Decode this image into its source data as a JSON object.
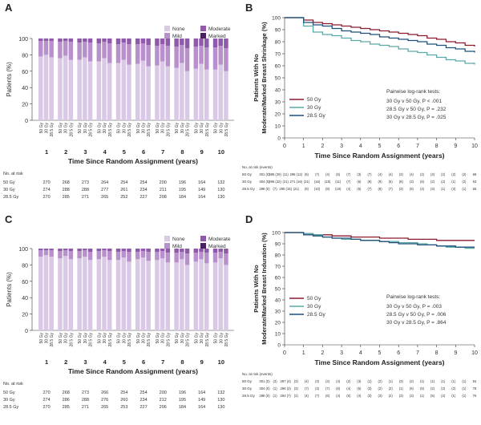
{
  "panels": [
    {
      "letter": "A",
      "type": "stacked_bar",
      "ylabel": "Patients (%)",
      "xlabel": "Time Since Random Assignment (years)",
      "yticks": [
        "0",
        "20",
        "40",
        "60",
        "80",
        "100"
      ],
      "legend": [
        "None",
        "Moderate",
        "Mild",
        "Marked"
      ],
      "arm_labels": [
        "50 Gy",
        "30 Gy",
        "28.5 Gy"
      ],
      "years": [
        "1",
        "2",
        "3",
        "4",
        "5",
        "6",
        "7",
        "8",
        "9",
        "10"
      ],
      "at_risk_title": "No. at risk",
      "at_risk": [
        {
          "arm": "50 Gy",
          "values": [
            "270",
            "268",
            "273",
            "264",
            "254",
            "254",
            "200",
            "196",
            "164",
            "132"
          ]
        },
        {
          "arm": "30 Gy",
          "values": [
            "274",
            "288",
            "288",
            "277",
            "261",
            "234",
            "211",
            "195",
            "149",
            "130"
          ]
        },
        {
          "arm": "28.5 Gy",
          "values": [
            "270",
            "285",
            "271",
            "265",
            "252",
            "227",
            "208",
            "184",
            "164",
            "130"
          ]
        }
      ]
    },
    {
      "letter": "B",
      "type": "km",
      "ylabel_line1": "Patients With No",
      "ylabel_line2": "Moderate/Marked Breast Shrinkage (%)",
      "xlabel": "Time Since Random Assignment (years)",
      "yticks": [
        "0",
        "10",
        "20",
        "30",
        "40",
        "50",
        "60",
        "70",
        "80",
        "90",
        "100"
      ],
      "xticks": [
        "0",
        "1",
        "2",
        "3",
        "4",
        "5",
        "6",
        "7",
        "8",
        "9",
        "10"
      ],
      "legend": [
        "50 Gy",
        "30 Gy",
        "28.5 Gy"
      ],
      "logrank_title": "Pairwise log-rank tests:",
      "logrank": [
        "30 Gy v 50 Gy, P < .001",
        "28.5 Gy v 50 Gy, P = .232",
        "30 Gy v 28.5 Gy, P = .025"
      ],
      "at_risk_title": "No. at risk (events)",
      "at_risk": [
        {
          "arm": "50 Gy",
          "values": [
            "301 (0)",
            "285 (29)",
            "(11)",
            "298 (12)",
            "(5)",
            "(7)",
            "(4)",
            "(5)",
            "(7)",
            "(3)",
            "(7)",
            "(4)",
            "(4)",
            "(3)",
            "(4)",
            "(2)",
            "(3)",
            "(2)",
            "(2)",
            "(2)",
            "68"
          ]
        },
        {
          "arm": "30 Gy",
          "values": [
            "304 (0)",
            "295 (22)",
            "(21)",
            "271 (16)",
            "(21)",
            "(16)",
            "(15)",
            "(11)",
            "(7)",
            "(6)",
            "(8)",
            "(9)",
            "(5)",
            "(8)",
            "(3)",
            "(6)",
            "(2)",
            "(2)",
            "(1)",
            "(2)",
            "63"
          ]
        },
        {
          "arm": "28.5 Gy",
          "values": [
            "298 (0)",
            "(7)",
            "290 (15)",
            "(21)",
            "(8)",
            "(10)",
            "(8)",
            "(10)",
            "(4)",
            "(6)",
            "(7)",
            "(8)",
            "(7)",
            "(3)",
            "(5)",
            "(4)",
            "(3)",
            "(1)",
            "(3)",
            "(1)",
            "65"
          ]
        }
      ]
    },
    {
      "letter": "C",
      "type": "stacked_bar",
      "ylabel": "Patients (%)",
      "xlabel": "Time Since Random Assignment (years)",
      "yticks": [
        "0",
        "20",
        "40",
        "60",
        "80",
        "100"
      ],
      "legend": [
        "None",
        "Moderate",
        "Mild",
        "Marked"
      ],
      "arm_labels": [
        "50 Gy",
        "30 Gy",
        "28.5 Gy"
      ],
      "years": [
        "1",
        "2",
        "3",
        "4",
        "5",
        "6",
        "7",
        "8",
        "9",
        "10"
      ],
      "at_risk_title": "No. at risk",
      "at_risk": [
        {
          "arm": "50 Gy",
          "values": [
            "270",
            "268",
            "273",
            "266",
            "254",
            "254",
            "200",
            "196",
            "164",
            "132"
          ]
        },
        {
          "arm": "30 Gy",
          "values": [
            "274",
            "286",
            "288",
            "276",
            "260",
            "234",
            "212",
            "195",
            "149",
            "130"
          ]
        },
        {
          "arm": "28.5 Gy",
          "values": [
            "270",
            "285",
            "271",
            "265",
            "253",
            "227",
            "206",
            "184",
            "164",
            "130"
          ]
        }
      ]
    },
    {
      "letter": "D",
      "type": "km",
      "ylabel_line1": "Patients With No",
      "ylabel_line2": "Moderate/Marked Breast Induration (%)",
      "xlabel": "Time Since Random Assignment (years)",
      "yticks": [
        "0",
        "10",
        "20",
        "30",
        "40",
        "50",
        "60",
        "70",
        "80",
        "90",
        "100"
      ],
      "xticks": [
        "0",
        "1",
        "2",
        "3",
        "4",
        "5",
        "6",
        "7",
        "8",
        "9",
        "10"
      ],
      "legend": [
        "50 Gy",
        "30 Gy",
        "28.5 Gy"
      ],
      "logrank_title": "Pairwise log-rank tests:",
      "logrank": [
        "30 Gy v 50 Gy, P = .003",
        "28.5 Gy v 50 Gy, P = .006",
        "30 Gy v 28.5 Gy, P = .864"
      ],
      "at_risk_title": "No. at risk (events)",
      "at_risk": [
        {
          "arm": "50 Gy",
          "values": [
            "301 (0)",
            "(3)",
            "297 (4)",
            "(3)",
            "(4)",
            "(3)",
            "(2)",
            "(4)",
            "(2)",
            "(3)",
            "(1)",
            "(2)",
            "(1)",
            "(3)",
            "(2)",
            "(1)",
            "(1)",
            "(1)",
            "(1)",
            "(1)",
            "84"
          ]
        },
        {
          "arm": "30 Gy",
          "values": [
            "304 (0)",
            "(1)",
            "296 (2)",
            "(3)",
            "(7)",
            "(3)",
            "(7)",
            "(6)",
            "(4)",
            "(5)",
            "(3)",
            "(2)",
            "(2)",
            "(1)",
            "(6)",
            "(5)",
            "(2)",
            "(2)",
            "(2)",
            "(1)",
            "78"
          ]
        },
        {
          "arm": "28.5 Gy",
          "values": [
            "298 (0)",
            "(1)",
            "294 (7)",
            "(2)",
            "(4)",
            "(7)",
            "(6)",
            "(4)",
            "(5)",
            "(4)",
            "(3)",
            "(3)",
            "(2)",
            "(3)",
            "(3)",
            "(1)",
            "(5)",
            "(2)",
            "(1)",
            "(1)",
            "76"
          ]
        }
      ]
    }
  ],
  "colors": {
    "none": "#d9c8e6",
    "mild": "#b890cc",
    "moderate": "#8e5aa9",
    "marked": "#4a2160",
    "arm_50": "#8b1a2e",
    "arm_30": "#5aa9a5",
    "arm_285": "#1f4f7a"
  },
  "chart_data": [
    {
      "type": "bar",
      "title": "A",
      "stacked": true,
      "xlabel": "Time Since Random Assignment (years)",
      "ylabel": "Patients (%)",
      "ylim": [
        0,
        100
      ],
      "categories": [
        "1",
        "2",
        "3",
        "4",
        "5",
        "6",
        "7",
        "8",
        "9",
        "10"
      ],
      "groups": [
        "50 Gy",
        "30 Gy",
        "28.5 Gy"
      ],
      "series": [
        {
          "name": "None",
          "values": [
            [
              78,
              80,
              77
            ],
            [
              76,
              79,
              74
            ],
            [
              74,
              77,
              72
            ],
            [
              72,
              76,
              70
            ],
            [
              70,
              74,
              68
            ],
            [
              69,
              73,
              66
            ],
            [
              67,
              72,
              66
            ],
            [
              64,
              70,
              60
            ],
            [
              63,
              69,
              62
            ],
            [
              62,
              68,
              60
            ]
          ]
        },
        {
          "name": "Mild",
          "values": [
            [
              19,
              17,
              20
            ],
            [
              20,
              18,
              22
            ],
            [
              21,
              19,
              23
            ],
            [
              22,
              20,
              24
            ],
            [
              23,
              21,
              25
            ],
            [
              24,
              21,
              26
            ],
            [
              24,
              21,
              25
            ],
            [
              26,
              22,
              28
            ],
            [
              27,
              22,
              27
            ],
            [
              27,
              23,
              28
            ]
          ]
        },
        {
          "name": "Moderate",
          "values": [
            [
              3,
              3,
              3
            ],
            [
              4,
              3,
              4
            ],
            [
              5,
              4,
              5
            ],
            [
              6,
              4,
              6
            ],
            [
              7,
              5,
              7
            ],
            [
              7,
              6,
              8
            ],
            [
              9,
              7,
              9
            ],
            [
              10,
              8,
              12
            ],
            [
              10,
              9,
              11
            ],
            [
              11,
              9,
              12
            ]
          ]
        },
        {
          "name": "Marked",
          "values": [
            [
              0,
              0,
              0
            ],
            [
              0,
              0,
              0
            ],
            [
              0,
              0,
              0
            ],
            [
              0,
              0,
              0
            ],
            [
              0,
              0,
              0
            ],
            [
              0,
              0,
              0
            ],
            [
              0,
              0,
              0
            ],
            [
              0,
              0,
              0
            ],
            [
              0,
              0,
              0
            ],
            [
              0,
              0,
              0
            ]
          ]
        }
      ]
    },
    {
      "type": "line",
      "title": "B",
      "xlabel": "Time Since Random Assignment (years)",
      "ylabel": "Patients With No Moderate/Marked Breast Shrinkage (%)",
      "xlim": [
        0,
        10
      ],
      "ylim": [
        0,
        100
      ],
      "x": [
        0,
        0.5,
        1,
        1.5,
        2,
        2.5,
        3,
        3.5,
        4,
        4.5,
        5,
        5.5,
        6,
        6.5,
        7,
        7.5,
        8,
        8.5,
        9,
        9.5,
        10
      ],
      "series": [
        {
          "name": "50 Gy",
          "values": [
            100,
            100,
            98,
            96,
            95,
            94,
            93,
            92,
            91,
            90,
            89,
            88,
            87,
            86,
            85,
            83,
            82,
            80,
            79,
            77,
            76
          ]
        },
        {
          "name": "30 Gy",
          "values": [
            100,
            100,
            93,
            88,
            86,
            85,
            83,
            81,
            80,
            78,
            77,
            76,
            74,
            72,
            71,
            69,
            67,
            65,
            64,
            62,
            61
          ]
        },
        {
          "name": "28.5 Gy",
          "values": [
            100,
            100,
            96,
            94,
            93,
            91,
            89,
            88,
            87,
            86,
            84,
            83,
            82,
            81,
            80,
            78,
            77,
            75,
            74,
            72,
            71
          ]
        }
      ]
    },
    {
      "type": "bar",
      "title": "C",
      "stacked": true,
      "xlabel": "Time Since Random Assignment (years)",
      "ylabel": "Patients (%)",
      "ylim": [
        0,
        100
      ],
      "categories": [
        "1",
        "2",
        "3",
        "4",
        "5",
        "6",
        "7",
        "8",
        "9",
        "10"
      ],
      "groups": [
        "50 Gy",
        "30 Gy",
        "28.5 Gy"
      ],
      "series": [
        {
          "name": "None",
          "values": [
            [
              90,
              92,
              90
            ],
            [
              88,
              91,
              87
            ],
            [
              88,
              90,
              86
            ],
            [
              87,
              90,
              86
            ],
            [
              86,
              89,
              84
            ],
            [
              87,
              89,
              85
            ],
            [
              86,
              88,
              83
            ],
            [
              83,
              87,
              80
            ],
            [
              84,
              87,
              82
            ],
            [
              83,
              88,
              80
            ]
          ]
        },
        {
          "name": "Mild",
          "values": [
            [
              8,
              6,
              8
            ],
            [
              9,
              7,
              10
            ],
            [
              9,
              8,
              10
            ],
            [
              10,
              8,
              11
            ],
            [
              10,
              8,
              12
            ],
            [
              9,
              8,
              11
            ],
            [
              10,
              9,
              12
            ],
            [
              12,
              9,
              14
            ],
            [
              11,
              9,
              13
            ],
            [
              12,
              8,
              14
            ]
          ]
        },
        {
          "name": "Moderate",
          "values": [
            [
              2,
              2,
              2
            ],
            [
              3,
              2,
              3
            ],
            [
              3,
              2,
              4
            ],
            [
              3,
              2,
              3
            ],
            [
              4,
              3,
              4
            ],
            [
              4,
              3,
              4
            ],
            [
              4,
              3,
              5
            ],
            [
              5,
              4,
              6
            ],
            [
              5,
              4,
              5
            ],
            [
              5,
              4,
              6
            ]
          ]
        },
        {
          "name": "Marked",
          "values": [
            [
              0,
              0,
              0
            ],
            [
              0,
              0,
              0
            ],
            [
              0,
              0,
              0
            ],
            [
              0,
              0,
              0
            ],
            [
              0,
              0,
              0
            ],
            [
              0,
              0,
              0
            ],
            [
              0,
              0,
              0
            ],
            [
              0,
              0,
              0
            ],
            [
              0,
              0,
              0
            ],
            [
              0,
              0,
              0
            ]
          ]
        }
      ]
    },
    {
      "type": "line",
      "title": "D",
      "xlabel": "Time Since Random Assignment (years)",
      "ylabel": "Patients With No Moderate/Marked Breast Induration (%)",
      "xlim": [
        0,
        10
      ],
      "ylim": [
        0,
        100
      ],
      "x": [
        0,
        0.5,
        1,
        1.5,
        2,
        2.5,
        3,
        3.5,
        4,
        4.5,
        5,
        5.5,
        6,
        6.5,
        7,
        7.5,
        8,
        8.5,
        9,
        9.5,
        10
      ],
      "series": [
        {
          "name": "50 Gy",
          "values": [
            100,
            100,
            99,
            98,
            98,
            97,
            97,
            96,
            96,
            96,
            95,
            95,
            95,
            94,
            94,
            94,
            93,
            93,
            93,
            93,
            93
          ]
        },
        {
          "name": "30 Gy",
          "values": [
            100,
            100,
            99,
            98,
            96,
            95,
            94,
            94,
            93,
            93,
            92,
            92,
            91,
            91,
            90,
            89,
            88,
            87,
            87,
            86,
            86
          ]
        },
        {
          "name": "28.5 Gy",
          "values": [
            100,
            100,
            98,
            97,
            96,
            95,
            95,
            94,
            93,
            93,
            92,
            91,
            90,
            90,
            89,
            89,
            88,
            88,
            87,
            87,
            87
          ]
        }
      ]
    }
  ]
}
